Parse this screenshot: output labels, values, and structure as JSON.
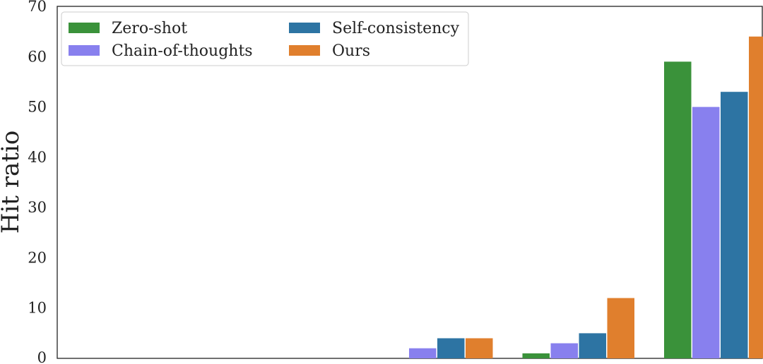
{
  "chart_data": {
    "type": "bar",
    "ylabel": "Hit ratio",
    "ylim": [
      0,
      70
    ],
    "yticks": [
      "0",
      "10",
      "20",
      "30",
      "40",
      "50",
      "60",
      "70"
    ],
    "categories": [
      "",
      "",
      "",
      "",
      ""
    ],
    "series": [
      {
        "name": "Zero-shot",
        "color": "#3a923a",
        "values": [
          0,
          0,
          0,
          1,
          59
        ]
      },
      {
        "name": "Chain-of-thoughts",
        "color": "#8880ee",
        "values": [
          0,
          0,
          2,
          3,
          50
        ]
      },
      {
        "name": "Self-consistency",
        "color": "#2d74a3",
        "values": [
          0,
          0,
          4,
          5,
          53
        ]
      },
      {
        "name": "Ours",
        "color": "#e07f2d",
        "values": [
          0,
          0,
          4,
          12,
          64
        ]
      }
    ],
    "grid": false,
    "legend": "top-left"
  }
}
